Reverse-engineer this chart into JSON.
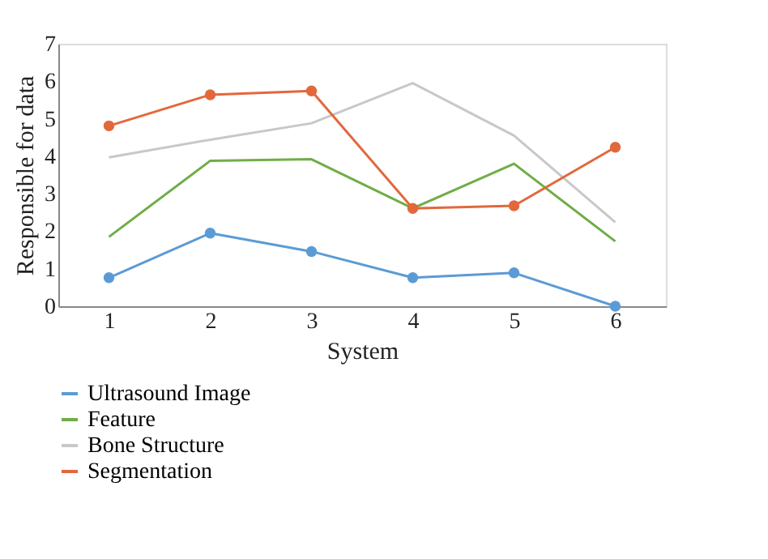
{
  "chart_data": {
    "type": "line",
    "xlabel": "System",
    "ylabel": "Responsible for data",
    "categories": [
      "1",
      "2",
      "3",
      "4",
      "5",
      "6"
    ],
    "series": [
      {
        "name": "Ultrasound Image",
        "color": "#5b9bd5",
        "marker": "circle",
        "values": [
          0.76,
          1.95,
          1.46,
          0.76,
          0.89,
          0
        ]
      },
      {
        "name": "Feature",
        "color": "#70ad47",
        "marker": "none",
        "values": [
          1.85,
          3.88,
          3.92,
          2.61,
          3.8,
          1.73
        ]
      },
      {
        "name": "Bone Structure",
        "color": "#c8c8c8",
        "marker": "none",
        "values": [
          3.97,
          4.44,
          4.88,
          5.95,
          4.55,
          2.24
        ]
      },
      {
        "name": "Segmentation",
        "color": "#e2683c",
        "marker": "circle",
        "values": [
          4.81,
          5.64,
          5.74,
          2.61,
          2.68,
          4.24
        ]
      }
    ],
    "ylim": [
      0,
      7
    ],
    "yticks": [
      0,
      1,
      2,
      3,
      4,
      5,
      6,
      7
    ],
    "grid": false,
    "legend": "bottom left"
  }
}
